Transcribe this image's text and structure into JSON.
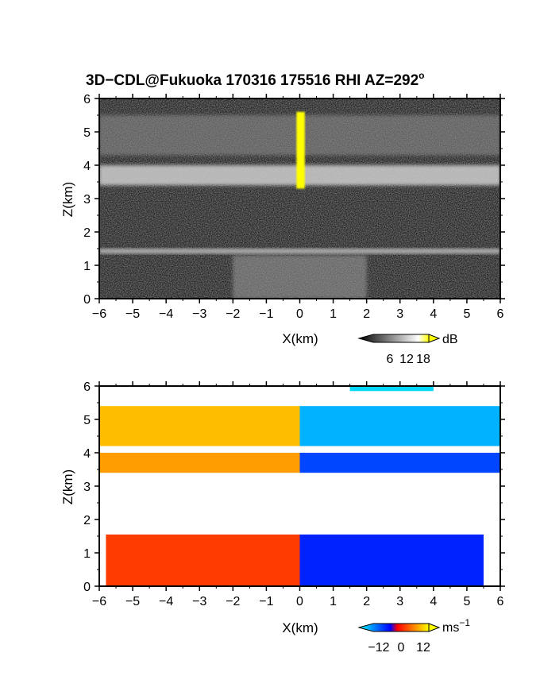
{
  "title": {
    "main": "3D−CDL@Fukuoka 170316 175516 RHI AZ=292",
    "sup": "o"
  },
  "chart_data": [
    {
      "type": "heatmap",
      "name": "backscatter",
      "xlabel": "X(km)",
      "ylabel": "Z(km)",
      "xlim": [
        -6,
        6
      ],
      "ylim": [
        0,
        6
      ],
      "xticks": [
        "−6",
        "−5",
        "−4",
        "−3",
        "−2",
        "−1",
        "0",
        "1",
        "2",
        "3",
        "4",
        "5",
        "6"
      ],
      "yticks": [
        "0",
        "1",
        "2",
        "3",
        "4",
        "5",
        "6"
      ],
      "colorbar": {
        "unit": "dB",
        "ticks": [
          "6",
          "12",
          "18"
        ],
        "tick_values": [
          6,
          12,
          18
        ],
        "range": [
          0,
          20
        ],
        "colors": [
          "#000000",
          "#ffffff",
          "#ffff00"
        ]
      },
      "layers": [
        {
          "z_bottom": 3.4,
          "z_top": 4.0,
          "x_range": [
            -6,
            6
          ],
          "level_db": 14
        },
        {
          "z_bottom": 4.3,
          "z_top": 5.5,
          "x_range": [
            -6,
            6
          ],
          "level_db": 9
        },
        {
          "z_bottom": 1.35,
          "z_top": 1.5,
          "x_range": [
            -6,
            6
          ],
          "level_db": 13
        },
        {
          "z_bottom": 0.0,
          "z_top": 1.3,
          "x_range": [
            -2,
            2
          ],
          "level_db": 10
        },
        {
          "z_bottom": 3.3,
          "z_top": 5.6,
          "x_range": [
            -0.1,
            0.15
          ],
          "level_db": 20
        }
      ]
    },
    {
      "type": "heatmap",
      "name": "doppler_velocity",
      "xlabel": "X(km)",
      "ylabel": "Z(km)",
      "xlim": [
        -6,
        6
      ],
      "ylim": [
        0,
        6
      ],
      "xticks": [
        "−6",
        "−5",
        "−4",
        "−3",
        "−2",
        "−1",
        "0",
        "1",
        "2",
        "3",
        "4",
        "5",
        "6"
      ],
      "yticks": [
        "0",
        "1",
        "2",
        "3",
        "4",
        "5",
        "6"
      ],
      "colorbar": {
        "unit": "ms",
        "unit_sup": "−1",
        "ticks": [
          "−12",
          "0",
          "12"
        ],
        "tick_values": [
          -12,
          0,
          12
        ],
        "range": [
          -15,
          15
        ],
        "colors": [
          "#00ffff",
          "#0000ff",
          "#ff0000",
          "#ffff00"
        ]
      },
      "layers": [
        {
          "z_bottom": 4.2,
          "z_top": 5.4,
          "x_range": [
            -6,
            6
          ],
          "velocity_left": 11,
          "velocity_right": -11
        },
        {
          "z_bottom": 3.4,
          "z_top": 4.0,
          "x_range": [
            -6,
            6
          ],
          "velocity_left": 9,
          "velocity_right": -5
        },
        {
          "z_bottom": 0.0,
          "z_top": 1.55,
          "x_range": [
            -5.8,
            5.5
          ],
          "velocity_left": 4,
          "velocity_right": -3
        },
        {
          "z_bottom": 5.85,
          "z_top": 6.0,
          "x_range": [
            1.5,
            4.0
          ],
          "velocity_left": -13,
          "velocity_right": -13
        }
      ]
    }
  ]
}
